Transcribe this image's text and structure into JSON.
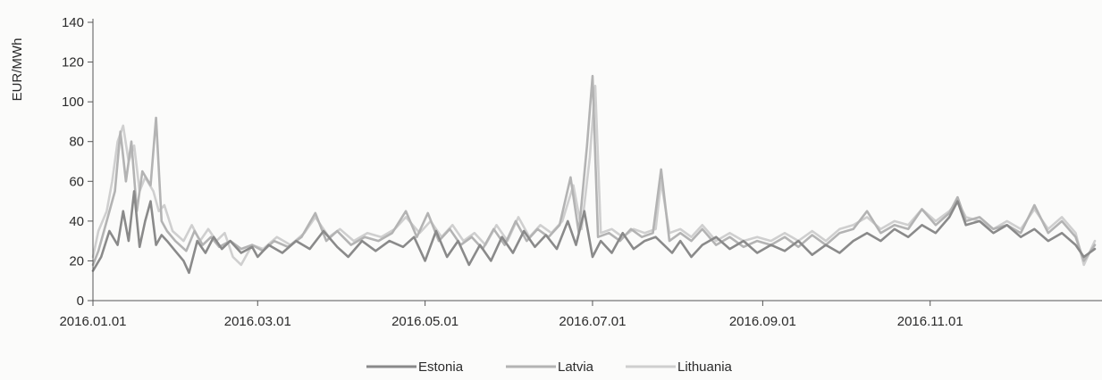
{
  "chart_data": {
    "type": "line",
    "title": "",
    "xlabel": "",
    "ylabel": "EUR/MWh",
    "x_range": [
      "2016-01-01",
      "2016-12-31"
    ],
    "ylim": [
      0,
      140
    ],
    "y_ticks": [
      0,
      20,
      40,
      60,
      80,
      100,
      120,
      140
    ],
    "y_tick_labels": [
      "0",
      "20",
      "40",
      "60",
      "80",
      "100",
      "120",
      "140"
    ],
    "x_ticks": [
      "2016-01-01",
      "2016-03-01",
      "2016-05-01",
      "2016-07-01",
      "2016-09-01",
      "2016-11-01"
    ],
    "x_tick_labels": [
      "2016.01.01",
      "2016.03.01",
      "2016.05.01",
      "2016.07.01",
      "2016.09.01",
      "2016.11.01"
    ],
    "grid": false,
    "legend_position": "bottom",
    "colors": {
      "Estonia": "#8a8a8a",
      "Latvia": "#b3b3b3",
      "Lithuania": "#cfcfcf"
    },
    "series": [
      {
        "name": "Estonia",
        "points": [
          [
            "2016-01-01",
            15
          ],
          [
            "2016-01-04",
            22
          ],
          [
            "2016-01-07",
            35
          ],
          [
            "2016-01-10",
            28
          ],
          [
            "2016-01-12",
            45
          ],
          [
            "2016-01-14",
            30
          ],
          [
            "2016-01-16",
            55
          ],
          [
            "2016-01-18",
            27
          ],
          [
            "2016-01-20",
            40
          ],
          [
            "2016-01-22",
            50
          ],
          [
            "2016-01-24",
            28
          ],
          [
            "2016-01-26",
            33
          ],
          [
            "2016-01-28",
            30
          ],
          [
            "2016-01-31",
            25
          ],
          [
            "2016-02-03",
            20
          ],
          [
            "2016-02-05",
            14
          ],
          [
            "2016-02-08",
            30
          ],
          [
            "2016-02-11",
            24
          ],
          [
            "2016-02-14",
            32
          ],
          [
            "2016-02-17",
            26
          ],
          [
            "2016-02-20",
            30
          ],
          [
            "2016-02-24",
            24
          ],
          [
            "2016-02-28",
            27
          ],
          [
            "2016-03-01",
            22
          ],
          [
            "2016-03-05",
            28
          ],
          [
            "2016-03-10",
            24
          ],
          [
            "2016-03-15",
            30
          ],
          [
            "2016-03-20",
            26
          ],
          [
            "2016-03-25",
            35
          ],
          [
            "2016-03-30",
            27
          ],
          [
            "2016-04-03",
            22
          ],
          [
            "2016-04-08",
            30
          ],
          [
            "2016-04-13",
            25
          ],
          [
            "2016-04-18",
            30
          ],
          [
            "2016-04-23",
            27
          ],
          [
            "2016-04-27",
            32
          ],
          [
            "2016-05-01",
            20
          ],
          [
            "2016-05-05",
            35
          ],
          [
            "2016-05-09",
            22
          ],
          [
            "2016-05-13",
            30
          ],
          [
            "2016-05-17",
            18
          ],
          [
            "2016-05-21",
            28
          ],
          [
            "2016-05-25",
            20
          ],
          [
            "2016-05-29",
            32
          ],
          [
            "2016-06-02",
            24
          ],
          [
            "2016-06-06",
            35
          ],
          [
            "2016-06-10",
            27
          ],
          [
            "2016-06-14",
            33
          ],
          [
            "2016-06-18",
            26
          ],
          [
            "2016-06-22",
            40
          ],
          [
            "2016-06-25",
            28
          ],
          [
            "2016-06-28",
            45
          ],
          [
            "2016-07-01",
            22
          ],
          [
            "2016-07-04",
            30
          ],
          [
            "2016-07-08",
            24
          ],
          [
            "2016-07-12",
            34
          ],
          [
            "2016-07-16",
            26
          ],
          [
            "2016-07-20",
            30
          ],
          [
            "2016-07-24",
            32
          ],
          [
            "2016-07-27",
            28
          ],
          [
            "2016-07-30",
            24
          ],
          [
            "2016-08-02",
            30
          ],
          [
            "2016-08-06",
            22
          ],
          [
            "2016-08-10",
            28
          ],
          [
            "2016-08-15",
            32
          ],
          [
            "2016-08-20",
            26
          ],
          [
            "2016-08-25",
            30
          ],
          [
            "2016-08-30",
            24
          ],
          [
            "2016-09-04",
            28
          ],
          [
            "2016-09-09",
            25
          ],
          [
            "2016-09-14",
            30
          ],
          [
            "2016-09-19",
            23
          ],
          [
            "2016-09-24",
            28
          ],
          [
            "2016-09-29",
            24
          ],
          [
            "2016-10-04",
            30
          ],
          [
            "2016-10-09",
            34
          ],
          [
            "2016-10-14",
            30
          ],
          [
            "2016-10-19",
            36
          ],
          [
            "2016-10-24",
            32
          ],
          [
            "2016-10-29",
            38
          ],
          [
            "2016-11-03",
            34
          ],
          [
            "2016-11-08",
            42
          ],
          [
            "2016-11-11",
            50
          ],
          [
            "2016-11-14",
            38
          ],
          [
            "2016-11-19",
            40
          ],
          [
            "2016-11-24",
            34
          ],
          [
            "2016-11-29",
            38
          ],
          [
            "2016-12-04",
            32
          ],
          [
            "2016-12-09",
            36
          ],
          [
            "2016-12-14",
            30
          ],
          [
            "2016-12-19",
            34
          ],
          [
            "2016-12-24",
            28
          ],
          [
            "2016-12-27",
            22
          ],
          [
            "2016-12-31",
            26
          ]
        ]
      },
      {
        "name": "Latvia",
        "points": [
          [
            "2016-01-01",
            18
          ],
          [
            "2016-01-03",
            25
          ],
          [
            "2016-01-06",
            40
          ],
          [
            "2016-01-09",
            55
          ],
          [
            "2016-01-11",
            85
          ],
          [
            "2016-01-13",
            60
          ],
          [
            "2016-01-15",
            80
          ],
          [
            "2016-01-17",
            45
          ],
          [
            "2016-01-19",
            65
          ],
          [
            "2016-01-22",
            58
          ],
          [
            "2016-01-24",
            92
          ],
          [
            "2016-01-26",
            40
          ],
          [
            "2016-01-28",
            35
          ],
          [
            "2016-01-31",
            30
          ],
          [
            "2016-02-04",
            25
          ],
          [
            "2016-02-07",
            35
          ],
          [
            "2016-02-10",
            28
          ],
          [
            "2016-02-13",
            32
          ],
          [
            "2016-02-16",
            27
          ],
          [
            "2016-02-20",
            30
          ],
          [
            "2016-02-24",
            26
          ],
          [
            "2016-02-28",
            28
          ],
          [
            "2016-03-03",
            25
          ],
          [
            "2016-03-07",
            30
          ],
          [
            "2016-03-12",
            27
          ],
          [
            "2016-03-17",
            32
          ],
          [
            "2016-03-22",
            44
          ],
          [
            "2016-03-26",
            30
          ],
          [
            "2016-03-30",
            35
          ],
          [
            "2016-04-04",
            28
          ],
          [
            "2016-04-09",
            32
          ],
          [
            "2016-04-14",
            30
          ],
          [
            "2016-04-19",
            34
          ],
          [
            "2016-04-24",
            45
          ],
          [
            "2016-04-28",
            32
          ],
          [
            "2016-05-02",
            44
          ],
          [
            "2016-05-06",
            30
          ],
          [
            "2016-05-10",
            36
          ],
          [
            "2016-05-14",
            28
          ],
          [
            "2016-05-18",
            32
          ],
          [
            "2016-05-22",
            26
          ],
          [
            "2016-05-26",
            36
          ],
          [
            "2016-05-30",
            28
          ],
          [
            "2016-06-03",
            40
          ],
          [
            "2016-06-07",
            30
          ],
          [
            "2016-06-11",
            36
          ],
          [
            "2016-06-15",
            32
          ],
          [
            "2016-06-19",
            38
          ],
          [
            "2016-06-23",
            62
          ],
          [
            "2016-06-26",
            34
          ],
          [
            "2016-06-29",
            78
          ],
          [
            "2016-07-01",
            113
          ],
          [
            "2016-07-03",
            32
          ],
          [
            "2016-07-07",
            34
          ],
          [
            "2016-07-11",
            30
          ],
          [
            "2016-07-15",
            36
          ],
          [
            "2016-07-19",
            32
          ],
          [
            "2016-07-23",
            34
          ],
          [
            "2016-07-26",
            66
          ],
          [
            "2016-07-29",
            30
          ],
          [
            "2016-08-02",
            34
          ],
          [
            "2016-08-06",
            30
          ],
          [
            "2016-08-10",
            36
          ],
          [
            "2016-08-15",
            28
          ],
          [
            "2016-08-20",
            32
          ],
          [
            "2016-08-25",
            27
          ],
          [
            "2016-08-30",
            30
          ],
          [
            "2016-09-04",
            28
          ],
          [
            "2016-09-09",
            32
          ],
          [
            "2016-09-14",
            27
          ],
          [
            "2016-09-19",
            33
          ],
          [
            "2016-09-24",
            28
          ],
          [
            "2016-09-29",
            34
          ],
          [
            "2016-10-04",
            36
          ],
          [
            "2016-10-09",
            45
          ],
          [
            "2016-10-14",
            34
          ],
          [
            "2016-10-19",
            38
          ],
          [
            "2016-10-24",
            36
          ],
          [
            "2016-10-29",
            46
          ],
          [
            "2016-11-03",
            38
          ],
          [
            "2016-11-08",
            44
          ],
          [
            "2016-11-11",
            52
          ],
          [
            "2016-11-14",
            40
          ],
          [
            "2016-11-19",
            42
          ],
          [
            "2016-11-24",
            36
          ],
          [
            "2016-11-29",
            38
          ],
          [
            "2016-12-04",
            34
          ],
          [
            "2016-12-09",
            48
          ],
          [
            "2016-12-14",
            34
          ],
          [
            "2016-12-19",
            40
          ],
          [
            "2016-12-24",
            32
          ],
          [
            "2016-12-27",
            20
          ],
          [
            "2016-12-31",
            28
          ]
        ]
      },
      {
        "name": "Lithuania",
        "points": [
          [
            "2016-01-01",
            22
          ],
          [
            "2016-01-03",
            35
          ],
          [
            "2016-01-06",
            45
          ],
          [
            "2016-01-08",
            60
          ],
          [
            "2016-01-10",
            80
          ],
          [
            "2016-01-12",
            88
          ],
          [
            "2016-01-14",
            70
          ],
          [
            "2016-01-16",
            78
          ],
          [
            "2016-01-18",
            55
          ],
          [
            "2016-01-20",
            62
          ],
          [
            "2016-01-23",
            55
          ],
          [
            "2016-01-25",
            45
          ],
          [
            "2016-01-27",
            48
          ],
          [
            "2016-01-30",
            35
          ],
          [
            "2016-02-03",
            30
          ],
          [
            "2016-02-06",
            38
          ],
          [
            "2016-02-09",
            30
          ],
          [
            "2016-02-12",
            36
          ],
          [
            "2016-02-15",
            30
          ],
          [
            "2016-02-18",
            34
          ],
          [
            "2016-02-21",
            22
          ],
          [
            "2016-02-24",
            18
          ],
          [
            "2016-02-28",
            28
          ],
          [
            "2016-03-03",
            26
          ],
          [
            "2016-03-08",
            32
          ],
          [
            "2016-03-13",
            28
          ],
          [
            "2016-03-18",
            34
          ],
          [
            "2016-03-22",
            42
          ],
          [
            "2016-03-27",
            32
          ],
          [
            "2016-03-31",
            36
          ],
          [
            "2016-04-05",
            30
          ],
          [
            "2016-04-10",
            34
          ],
          [
            "2016-04-15",
            32
          ],
          [
            "2016-04-20",
            36
          ],
          [
            "2016-04-24",
            42
          ],
          [
            "2016-04-29",
            34
          ],
          [
            "2016-05-03",
            40
          ],
          [
            "2016-05-07",
            32
          ],
          [
            "2016-05-11",
            38
          ],
          [
            "2016-05-15",
            30
          ],
          [
            "2016-05-19",
            34
          ],
          [
            "2016-05-23",
            28
          ],
          [
            "2016-05-27",
            38
          ],
          [
            "2016-05-31",
            30
          ],
          [
            "2016-06-04",
            42
          ],
          [
            "2016-06-08",
            32
          ],
          [
            "2016-06-12",
            38
          ],
          [
            "2016-06-16",
            34
          ],
          [
            "2016-06-20",
            40
          ],
          [
            "2016-06-24",
            58
          ],
          [
            "2016-06-27",
            36
          ],
          [
            "2016-06-30",
            72
          ],
          [
            "2016-07-02",
            108
          ],
          [
            "2016-07-04",
            34
          ],
          [
            "2016-07-08",
            36
          ],
          [
            "2016-07-12",
            32
          ],
          [
            "2016-07-16",
            36
          ],
          [
            "2016-07-20",
            34
          ],
          [
            "2016-07-24",
            36
          ],
          [
            "2016-07-26",
            60
          ],
          [
            "2016-07-29",
            34
          ],
          [
            "2016-08-02",
            36
          ],
          [
            "2016-08-06",
            32
          ],
          [
            "2016-08-10",
            38
          ],
          [
            "2016-08-15",
            30
          ],
          [
            "2016-08-20",
            34
          ],
          [
            "2016-08-25",
            30
          ],
          [
            "2016-08-30",
            32
          ],
          [
            "2016-09-04",
            30
          ],
          [
            "2016-09-09",
            34
          ],
          [
            "2016-09-14",
            30
          ],
          [
            "2016-09-19",
            35
          ],
          [
            "2016-09-24",
            30
          ],
          [
            "2016-09-29",
            36
          ],
          [
            "2016-10-04",
            38
          ],
          [
            "2016-10-09",
            42
          ],
          [
            "2016-10-14",
            36
          ],
          [
            "2016-10-19",
            40
          ],
          [
            "2016-10-24",
            38
          ],
          [
            "2016-10-29",
            46
          ],
          [
            "2016-11-03",
            40
          ],
          [
            "2016-11-08",
            45
          ],
          [
            "2016-11-11",
            50
          ],
          [
            "2016-11-14",
            42
          ],
          [
            "2016-11-19",
            40
          ],
          [
            "2016-11-24",
            36
          ],
          [
            "2016-11-29",
            40
          ],
          [
            "2016-12-04",
            36
          ],
          [
            "2016-12-09",
            46
          ],
          [
            "2016-12-14",
            36
          ],
          [
            "2016-12-19",
            42
          ],
          [
            "2016-12-24",
            34
          ],
          [
            "2016-12-27",
            18
          ],
          [
            "2016-12-31",
            30
          ]
        ]
      }
    ]
  }
}
